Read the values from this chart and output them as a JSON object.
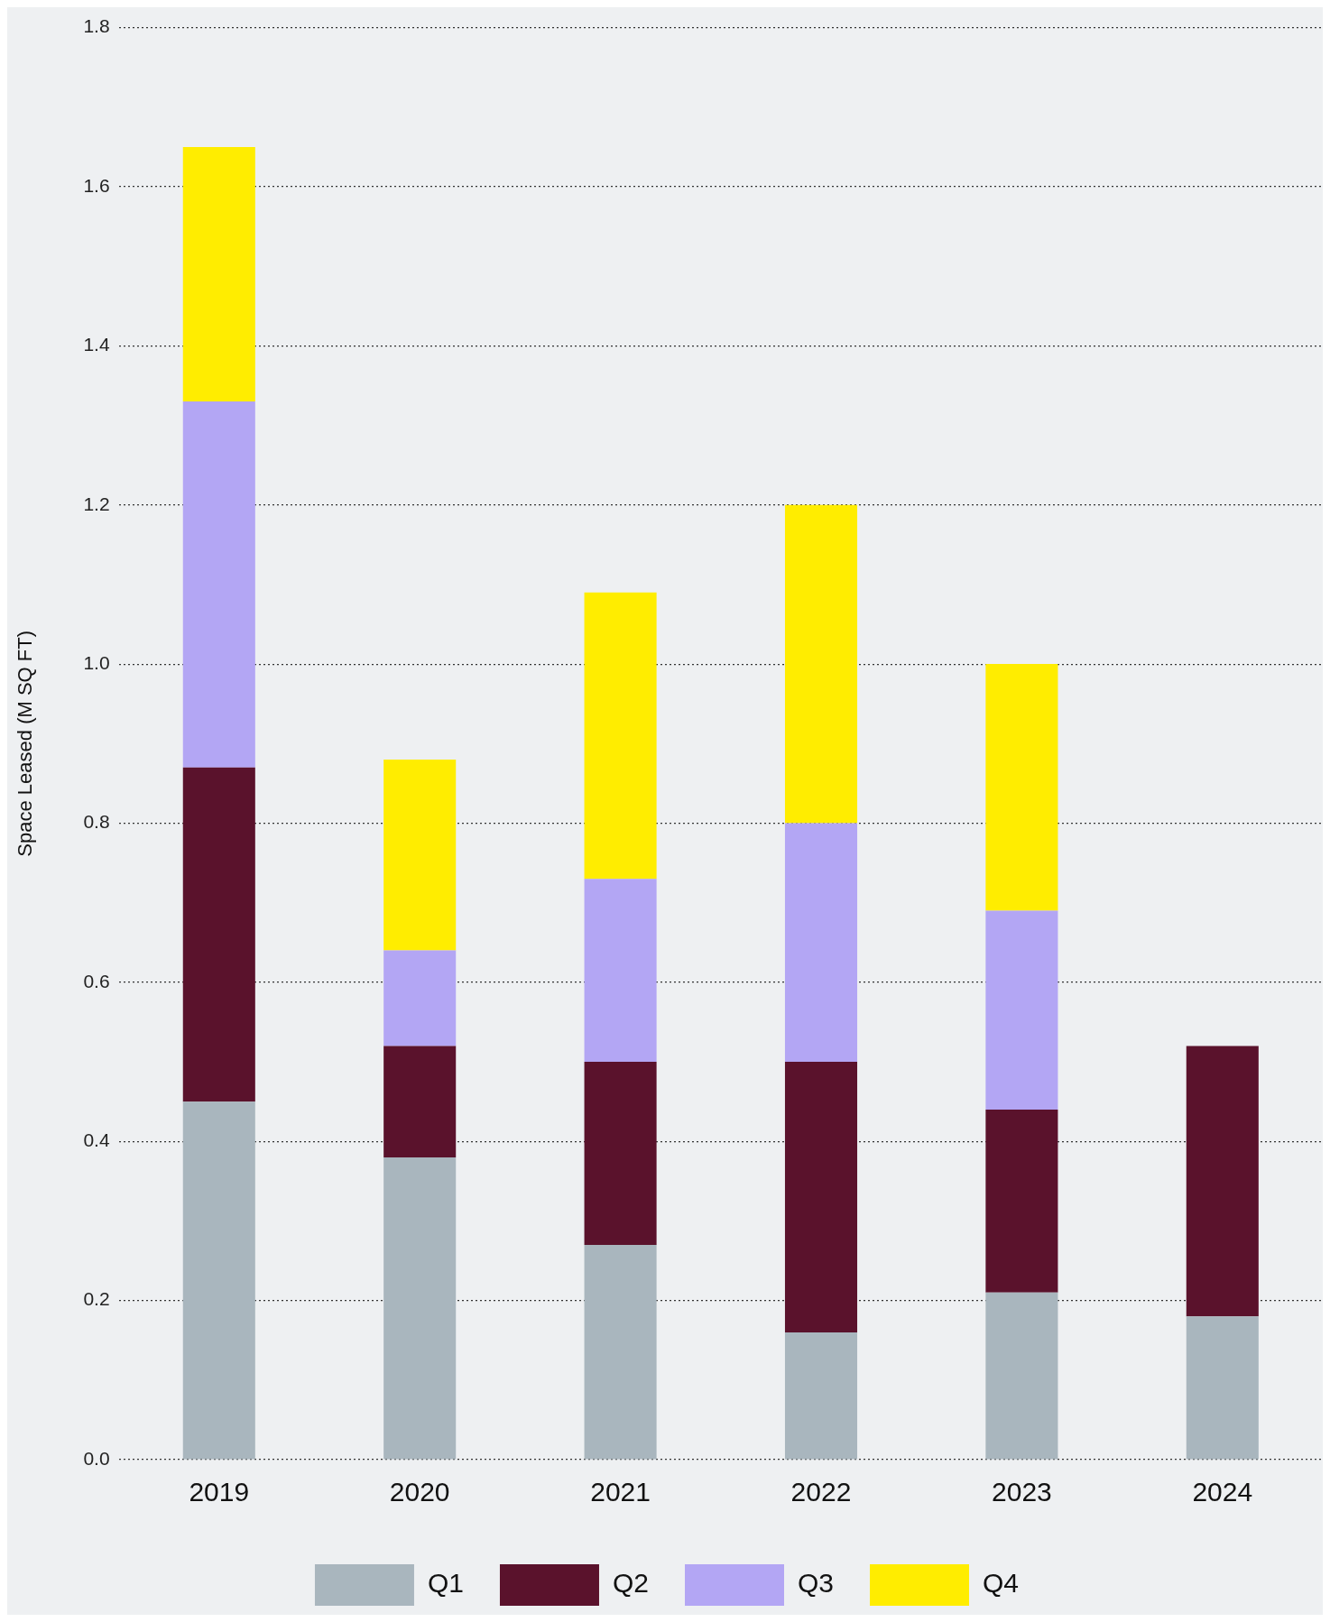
{
  "chart_data": {
    "type": "bar",
    "stacked": true,
    "ylabel": "Space Leased (M SQ FT)",
    "categories": [
      "2019",
      "2020",
      "2021",
      "2022",
      "2023",
      "2024"
    ],
    "series": [
      {
        "name": "Q1",
        "color": "#a9b6be",
        "values": [
          0.45,
          0.38,
          0.27,
          0.16,
          0.21,
          0.18
        ]
      },
      {
        "name": "Q2",
        "color": "#5a122c",
        "values": [
          0.42,
          0.14,
          0.23,
          0.34,
          0.23,
          0.34
        ]
      },
      {
        "name": "Q3",
        "color": "#b3a6f4",
        "values": [
          0.46,
          0.12,
          0.23,
          0.3,
          0.25,
          null
        ]
      },
      {
        "name": "Q4",
        "color": "#ffed00",
        "values": [
          0.32,
          0.24,
          0.36,
          0.4,
          0.31,
          null
        ]
      }
    ],
    "ylim": [
      0,
      1.8
    ],
    "yticks": [
      {
        "value": 0,
        "label": "0.0"
      },
      0.2,
      0.4,
      0.6,
      0.8,
      {
        "value": 1,
        "label": "1.0"
      },
      1.2,
      1.4,
      1.6,
      1.8
    ],
    "grid": "y",
    "legend": "bottom"
  }
}
